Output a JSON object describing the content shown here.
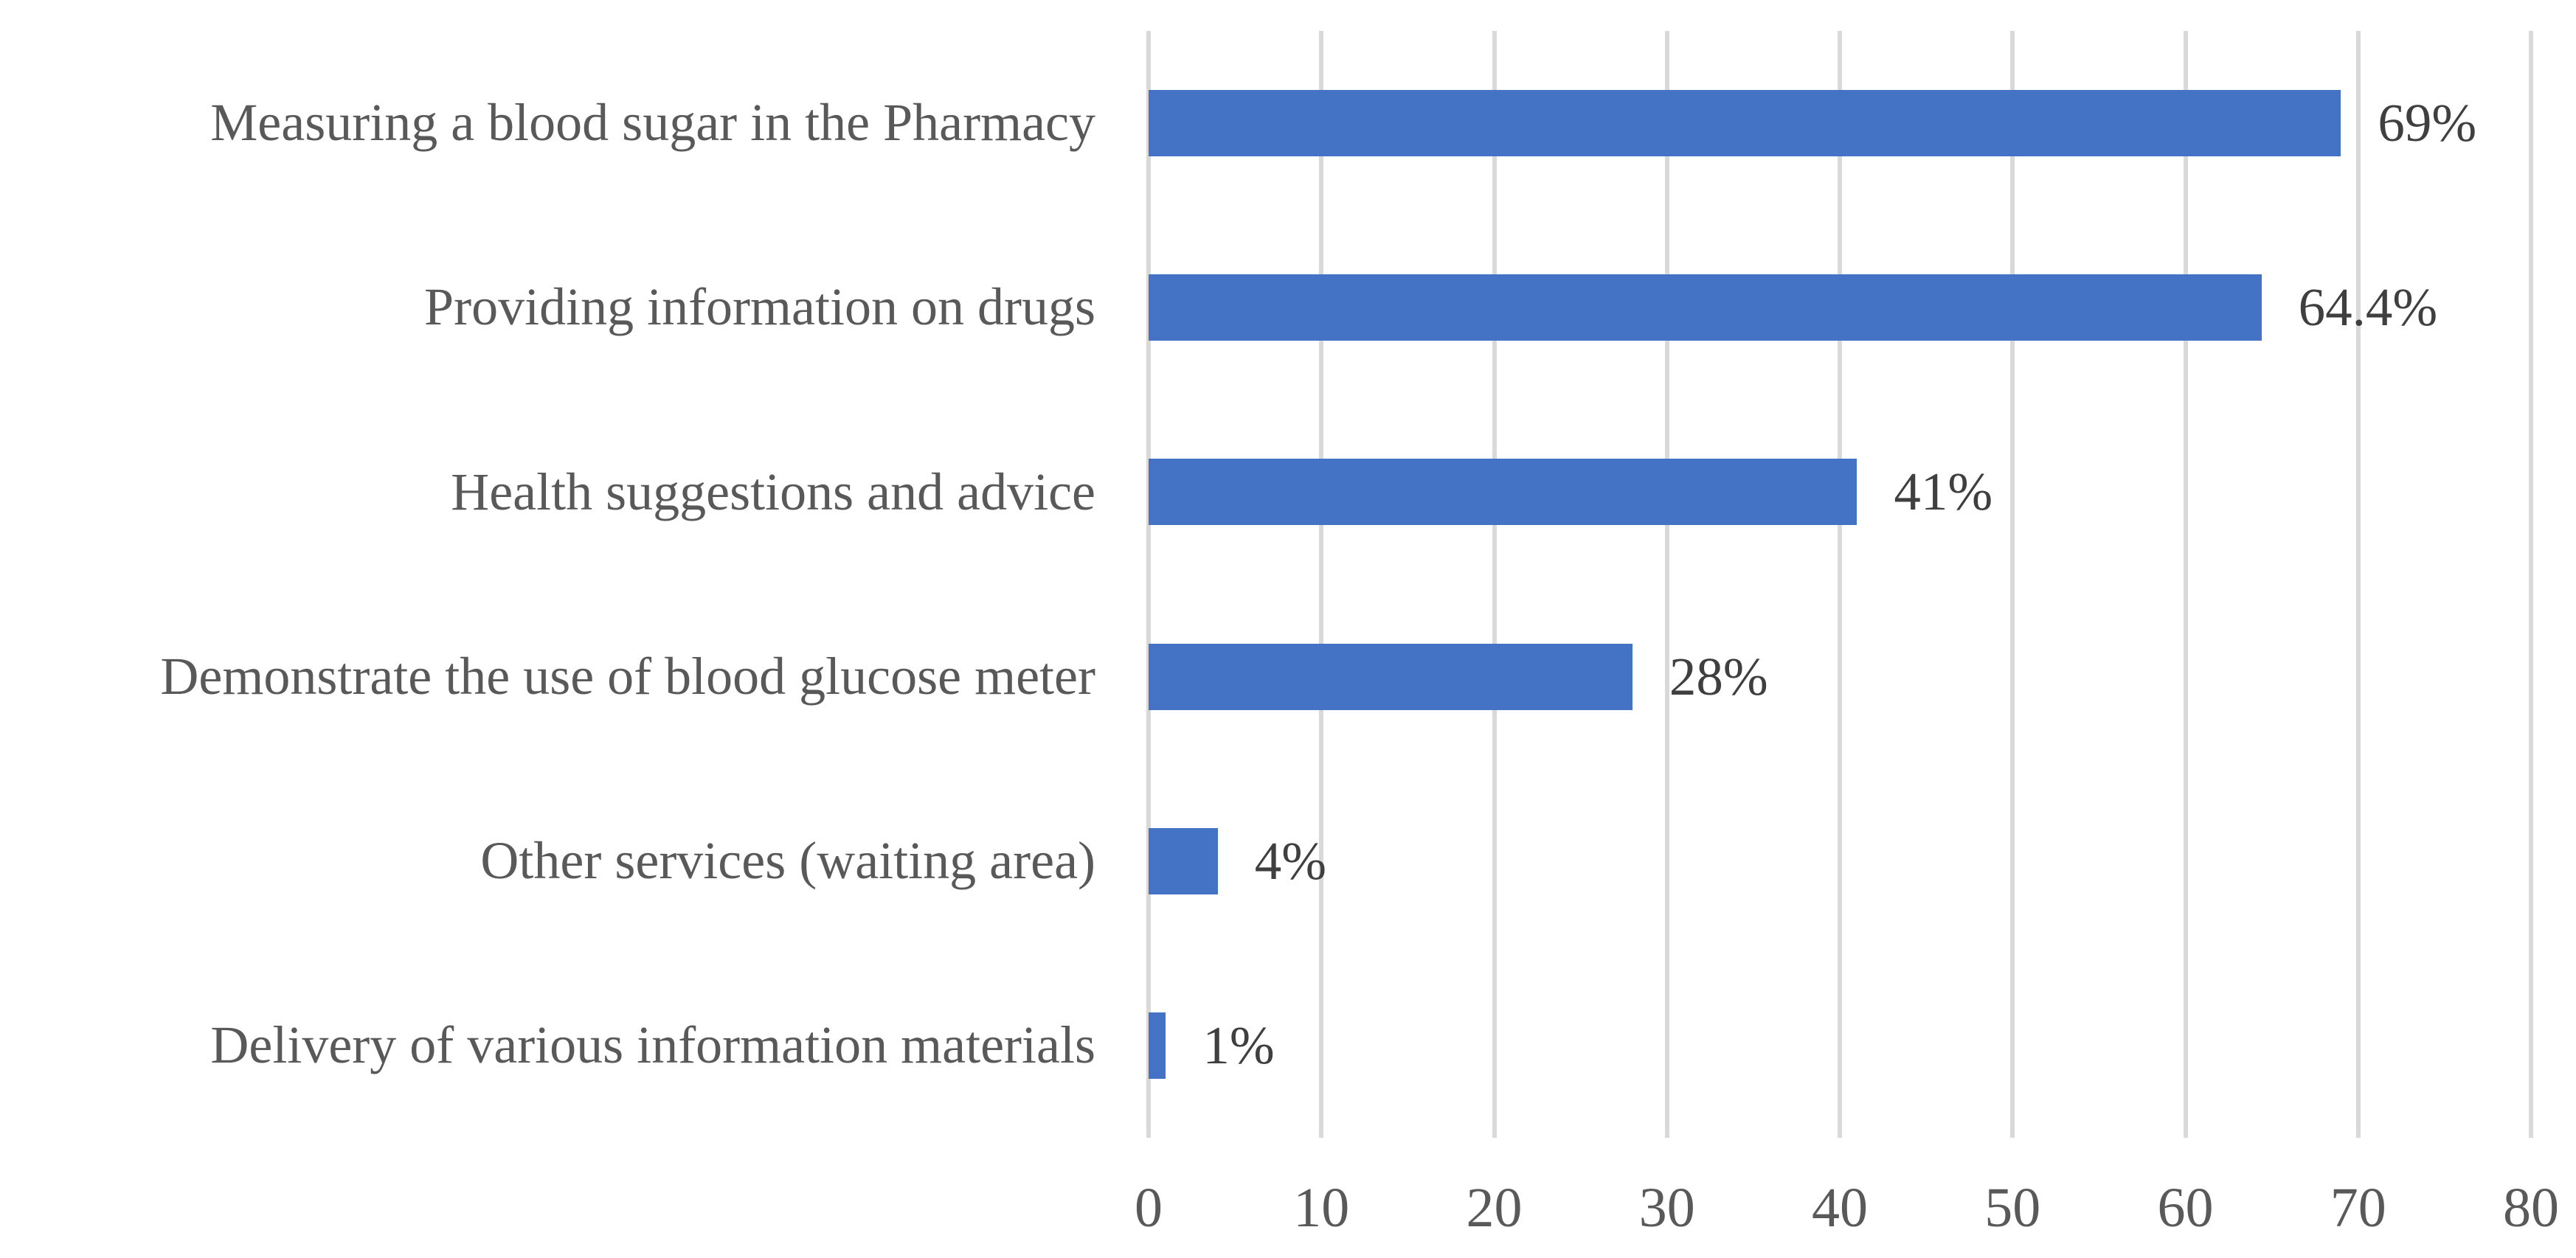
{
  "chart_data": {
    "type": "bar",
    "orientation": "horizontal",
    "title": "",
    "xlabel": "",
    "ylabel": "",
    "categories": [
      "Measuring a blood sugar in the Pharmacy",
      "Providing information on drugs",
      "Health suggestions and advice",
      "Demonstrate the use of blood glucose meter",
      "Other services (waiting area)",
      "Delivery of various information materials"
    ],
    "values": [
      69,
      64.4,
      41,
      28,
      4,
      1
    ],
    "value_labels": [
      "69%",
      "64.4%",
      "41%",
      "28%",
      "4%",
      "1%"
    ],
    "xlim": [
      0,
      80
    ],
    "x_ticks": [
      "0",
      "10",
      "20",
      "30",
      "40",
      "50",
      "60",
      "70",
      "80"
    ],
    "grid": "vertical-gridlines-on",
    "legend": "none",
    "colors": {
      "bar": "#4472C4",
      "gridline": "#D9D9D9",
      "category_label": "#595959",
      "value_label": "#3F3F3F",
      "tick_label": "#595959",
      "background": "#FFFFFF"
    }
  }
}
